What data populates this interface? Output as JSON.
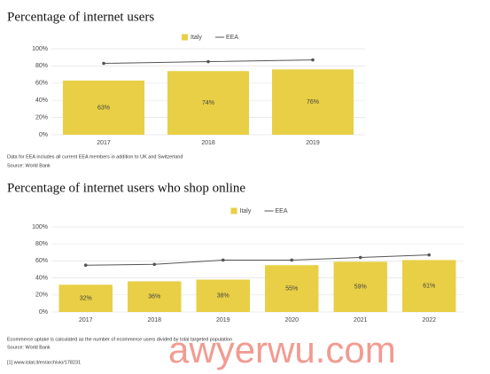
{
  "chart_data": [
    {
      "type": "bar",
      "title": "Percentage of internet users",
      "categories": [
        "2017",
        "2018",
        "2019"
      ],
      "series": [
        {
          "name": "Italy",
          "type": "bar",
          "color": "#e8cf45",
          "values": [
            63,
            74,
            76
          ],
          "value_labels": [
            "63%",
            "74%",
            "76%"
          ]
        },
        {
          "name": "EEA",
          "type": "line",
          "color": "#555555",
          "values": [
            83,
            85,
            87
          ]
        }
      ],
      "ylim": [
        0,
        100
      ],
      "yticks": [
        {
          "value": 0,
          "label": "0%"
        },
        {
          "value": 20,
          "label": "20%"
        },
        {
          "value": 40,
          "label": "40%"
        },
        {
          "value": 60,
          "label": "60%"
        },
        {
          "value": 80,
          "label": "80%"
        },
        {
          "value": 100,
          "label": "100%"
        }
      ],
      "grid": true,
      "notes": [
        "Data for EEA includes all current EEA members in addition to UK and Switzerland",
        "Source: World Bank"
      ]
    },
    {
      "type": "bar",
      "title": "Percentage of internet users who shop online",
      "categories": [
        "2017",
        "2018",
        "2019",
        "2020",
        "2021",
        "2022"
      ],
      "series": [
        {
          "name": "Italy",
          "type": "bar",
          "color": "#e8cf45",
          "values": [
            32,
            36,
            38,
            55,
            59,
            61
          ],
          "value_labels": [
            "32%",
            "36%",
            "38%",
            "55%",
            "59%",
            "61%"
          ]
        },
        {
          "name": "EEA",
          "type": "line",
          "color": "#555555",
          "values": [
            55,
            56,
            61,
            61,
            64,
            67
          ]
        }
      ],
      "ylim": [
        0,
        100
      ],
      "yticks": [
        {
          "value": 0,
          "label": "0%"
        },
        {
          "value": 20,
          "label": "20%"
        },
        {
          "value": 40,
          "label": "40%"
        },
        {
          "value": 60,
          "label": "60%"
        },
        {
          "value": 80,
          "label": "80%"
        },
        {
          "value": 100,
          "label": "100%"
        }
      ],
      "grid": true,
      "notes": [
        "Ecommerce uptake is calculated as the number of ecommerce users divided by total targeted population",
        "Source: World Bank",
        "[1] www.istat.it/en/archivio/178231"
      ]
    }
  ],
  "watermark": "awyerwu.com"
}
